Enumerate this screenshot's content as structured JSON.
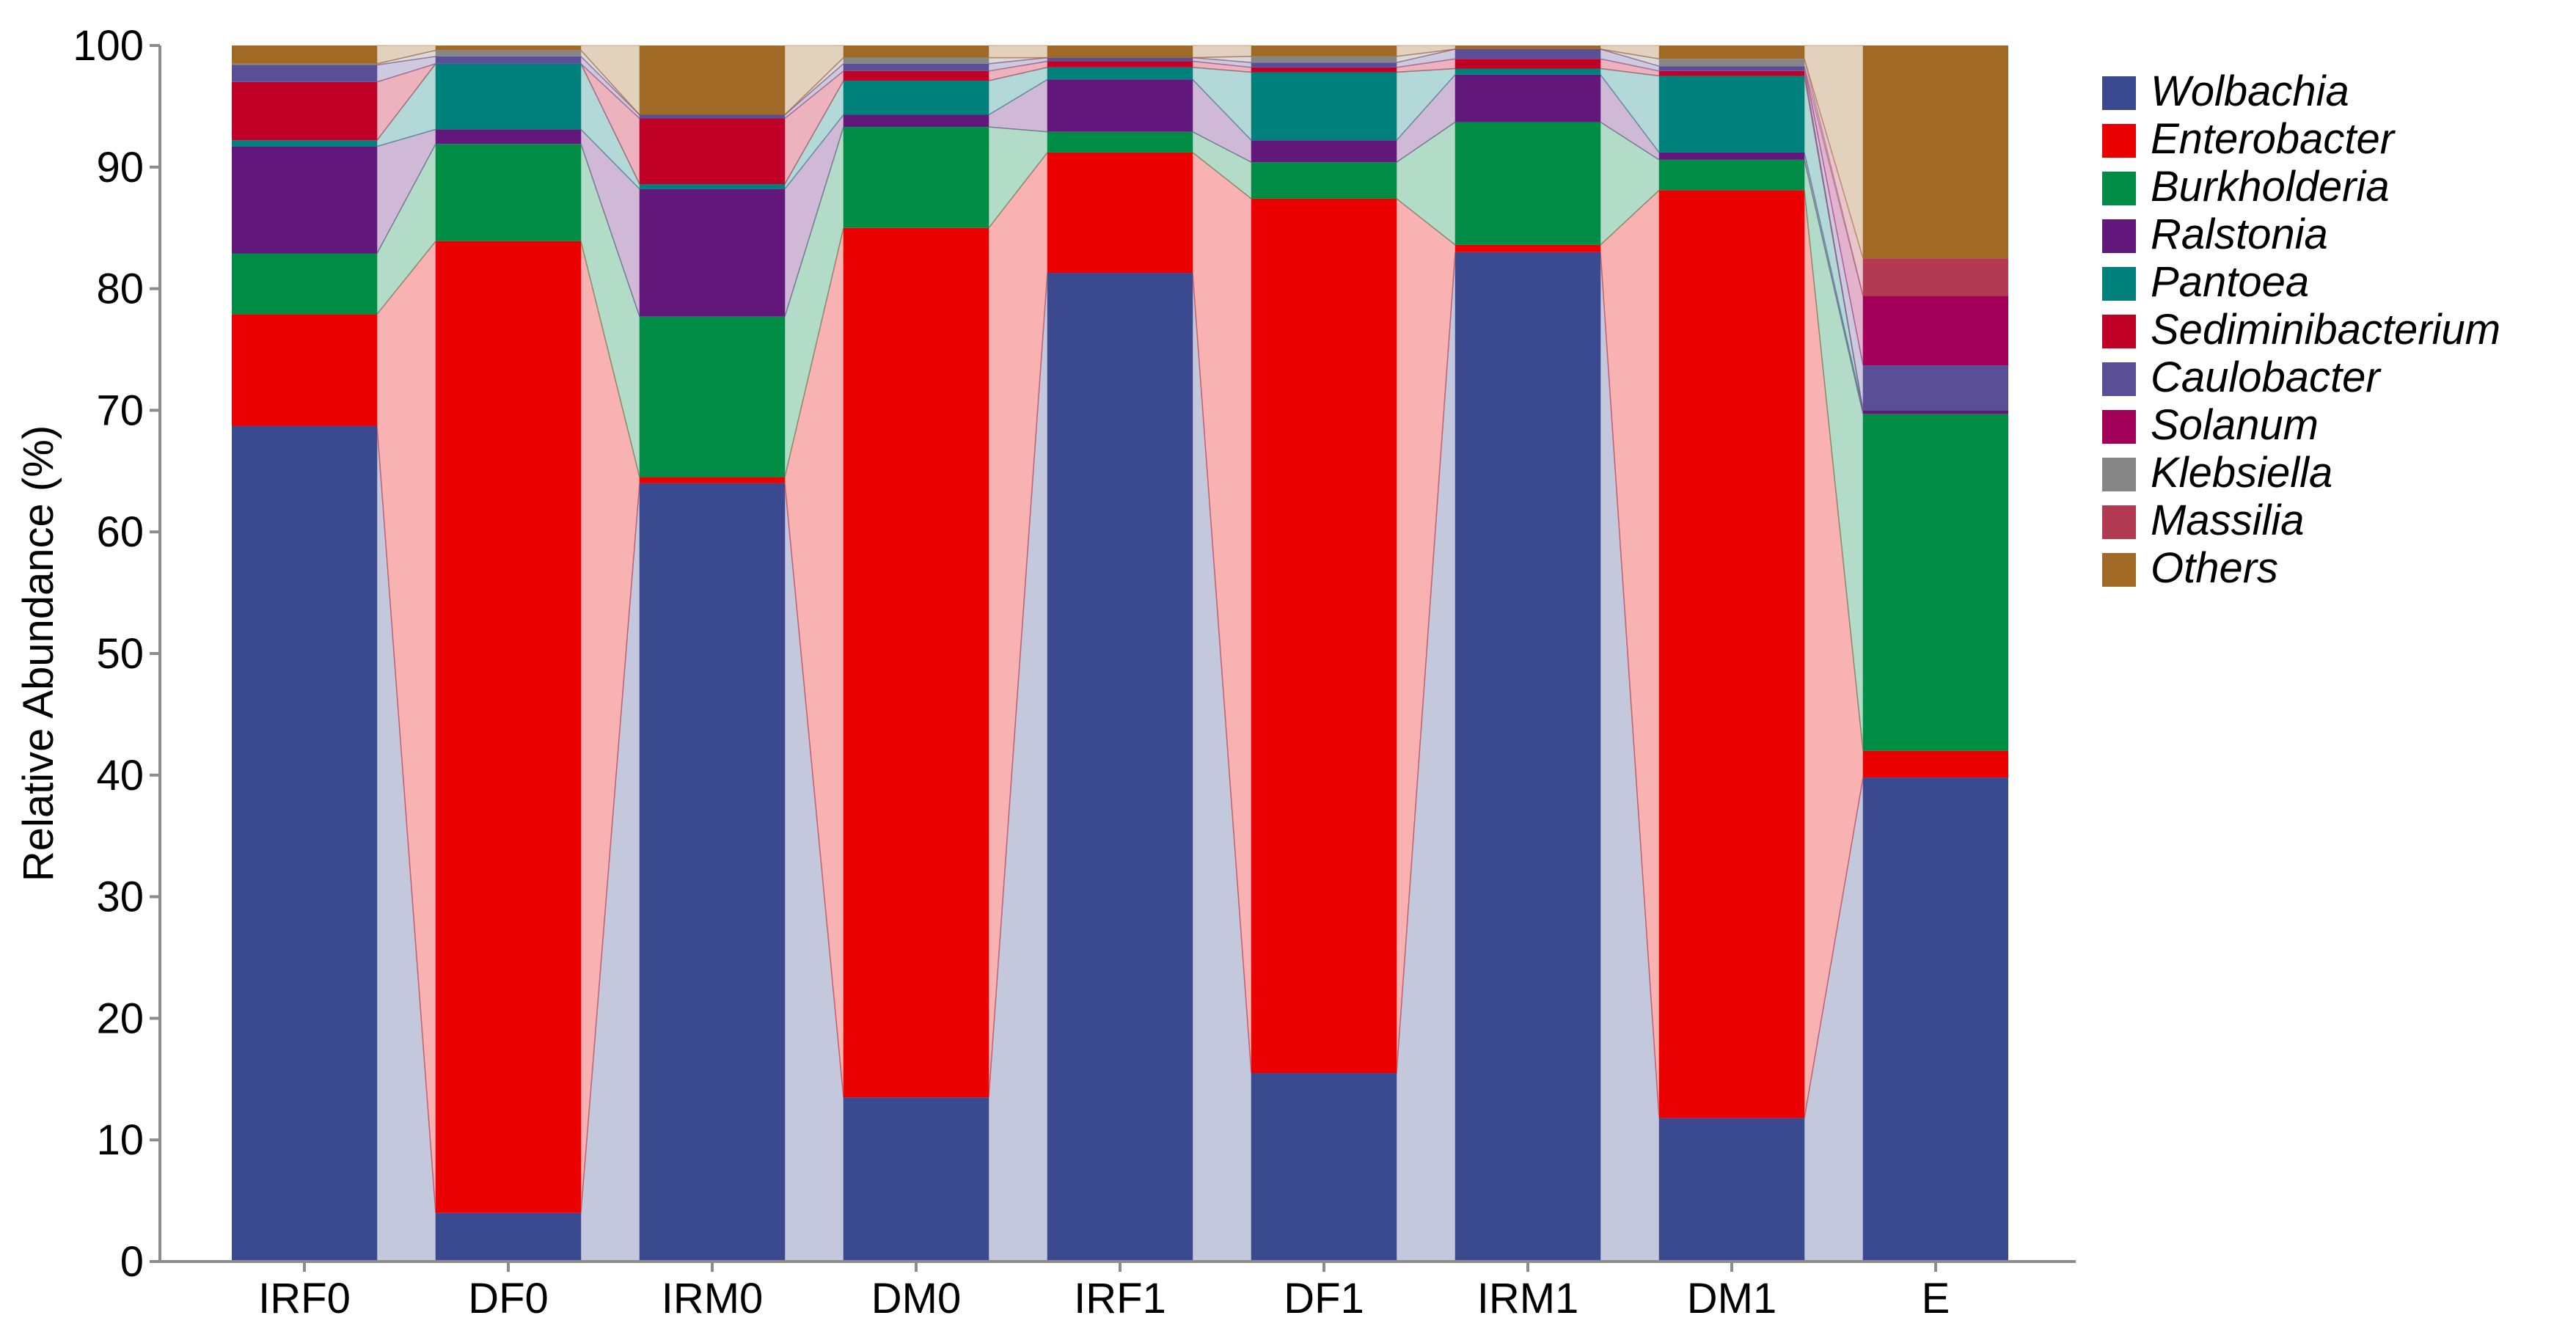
{
  "chart_data": {
    "type": "bar",
    "stacked": true,
    "title": "",
    "xlabel": "",
    "ylabel": "Relative Abundance (%)",
    "ylim": [
      0,
      100
    ],
    "yticks": [
      0,
      10,
      20,
      30,
      40,
      50,
      60,
      70,
      80,
      90,
      100
    ],
    "legend_position": "right",
    "categories": [
      "IRF0",
      "DF0",
      "IRM0",
      "DM0",
      "IRF1",
      "DF1",
      "IRM1",
      "DM1",
      "E"
    ],
    "series": [
      {
        "name": "Wolbachia",
        "color": "#3b4a8f",
        "values": [
          68.7,
          4.0,
          64.0,
          13.5,
          81.3,
          15.5,
          83.0,
          11.8,
          39.8
        ]
      },
      {
        "name": "Enterobacter",
        "color": "#ea0000",
        "values": [
          9.2,
          79.9,
          0.5,
          71.5,
          9.9,
          71.9,
          0.6,
          76.3,
          2.2
        ]
      },
      {
        "name": "Burkholderia",
        "color": "#008c45",
        "values": [
          5.0,
          8.0,
          13.2,
          8.3,
          1.7,
          3.0,
          10.1,
          2.5,
          27.7
        ]
      },
      {
        "name": "Ralstonia",
        "color": "#62177a",
        "values": [
          8.8,
          1.2,
          10.5,
          1.0,
          4.3,
          1.8,
          3.9,
          0.6,
          0.3
        ]
      },
      {
        "name": "Pantoea",
        "color": "#00807a",
        "values": [
          0.5,
          5.4,
          0.4,
          2.8,
          1.0,
          5.6,
          0.5,
          6.3,
          0.0
        ]
      },
      {
        "name": "Sediminibacterium",
        "color": "#c00026",
        "values": [
          4.8,
          0.0,
          5.4,
          0.8,
          0.5,
          0.4,
          0.8,
          0.4,
          0.0
        ]
      },
      {
        "name": "Caulobacter",
        "color": "#5a4e96",
        "values": [
          1.4,
          0.6,
          0.3,
          0.6,
          0.3,
          0.4,
          0.8,
          0.4,
          3.7
        ]
      },
      {
        "name": "Solanum",
        "color": "#a3005a",
        "values": [
          0.0,
          0.0,
          0.0,
          0.0,
          0.0,
          0.0,
          0.0,
          0.0,
          5.7
        ]
      },
      {
        "name": "Klebsiella",
        "color": "#868686",
        "values": [
          0.1,
          0.5,
          0.0,
          0.5,
          0.0,
          0.5,
          0.0,
          0.6,
          0.0
        ]
      },
      {
        "name": "Massilia",
        "color": "#b23a52",
        "values": [
          0.0,
          0.0,
          0.0,
          0.0,
          0.0,
          0.0,
          0.0,
          0.0,
          3.1
        ]
      },
      {
        "name": "Others",
        "color": "#a06a26",
        "values": [
          1.5,
          0.4,
          5.7,
          1.0,
          1.0,
          0.9,
          0.3,
          1.1,
          17.5
        ]
      }
    ]
  }
}
